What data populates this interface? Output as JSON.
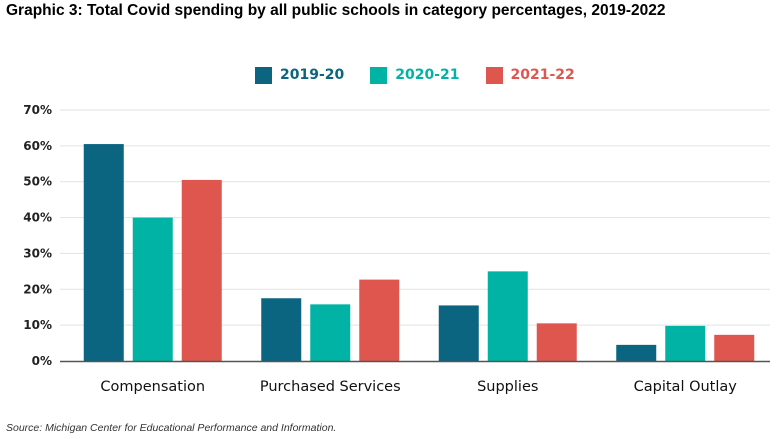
{
  "colors": {
    "s2019": "#0b6480",
    "s2020": "#00b3a4",
    "s2021": "#df564f",
    "grid": "#e2e2e2",
    "axis": "#555555"
  },
  "chart_data": {
    "type": "bar",
    "title": "Graphic 3: Total Covid spending by all public schools in category percentages, 2019-2022",
    "categories": [
      "Compensation",
      "Purchased Services",
      "Supplies",
      "Capital Outlay"
    ],
    "series": [
      {
        "name": "2019-20",
        "color": "#0b6480",
        "values": [
          60.5,
          17.5,
          15.5,
          4.5
        ]
      },
      {
        "name": "2020-21",
        "color": "#00b3a4",
        "values": [
          40.0,
          15.8,
          25.0,
          9.8
        ]
      },
      {
        "name": "2021-22",
        "color": "#df564f",
        "values": [
          50.5,
          22.7,
          10.5,
          7.3
        ]
      }
    ],
    "yticks": [
      "0%",
      "10%",
      "20%",
      "30%",
      "40%",
      "50%",
      "60%",
      "70%"
    ],
    "ylim": [
      0,
      70
    ],
    "xlabel": "",
    "ylabel": "",
    "legend_position": "top-center",
    "grid": true
  },
  "source": "Source: Michigan Center for Educational Performance and Information."
}
